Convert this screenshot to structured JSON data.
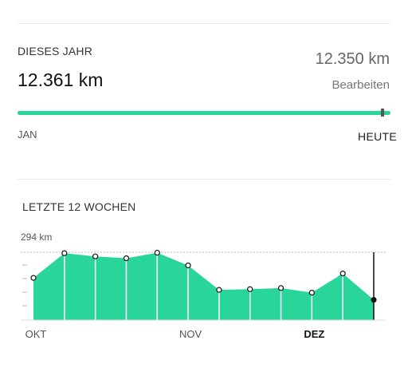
{
  "year": {
    "title": "DIESES JAHR",
    "total": "12.361 km",
    "goal": "12.350 km",
    "edit_label": "Bearbeiten",
    "progress_fraction": 1.0,
    "marker_fraction": 0.975,
    "axis_start": "JAN",
    "axis_end": "HEUTE"
  },
  "weeks": {
    "title": "LETZTE 12 WOCHEN"
  },
  "colors": {
    "accent": "#2ad59c",
    "accent_fill": "#2ad59c"
  },
  "chart_data": {
    "type": "area",
    "max_label": "294 km",
    "ylim": [
      0,
      294
    ],
    "values": [
      183,
      290,
      276,
      268,
      292,
      237,
      131,
      134,
      139,
      119,
      202,
      88
    ],
    "selected_index": 11,
    "tick_labels": [
      {
        "index": 0,
        "label": "OKT",
        "active": false
      },
      {
        "index": 5,
        "label": "NOV",
        "active": false
      },
      {
        "index": 9,
        "label": "DEZ",
        "active": true
      }
    ],
    "gridline_max": true
  }
}
